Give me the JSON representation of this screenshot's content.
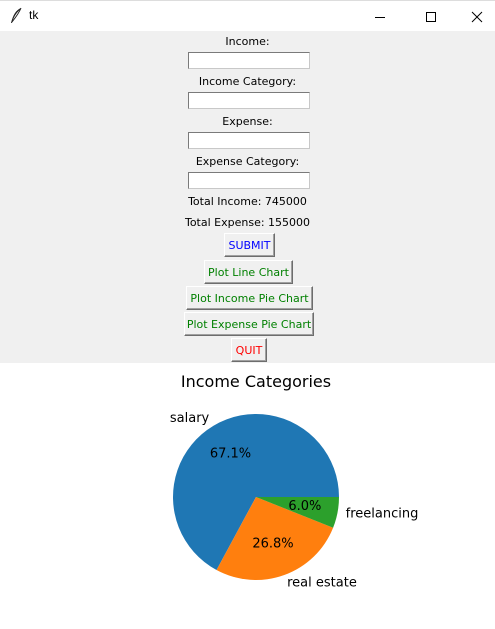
{
  "window": {
    "title": "tk"
  },
  "form": {
    "income_label": "Income:",
    "income_value": "",
    "income_category_label": "Income Category:",
    "income_category_value": "",
    "expense_label": "Expense:",
    "expense_value": "",
    "expense_category_label": "Expense Category:",
    "expense_category_value": "",
    "total_income": "Total Income: 745000",
    "total_expense": "Total Expense: 155000"
  },
  "buttons": {
    "submit": "SUBMIT",
    "plot_line": "Plot Line Chart",
    "plot_income_pie": "Plot Income Pie Chart",
    "plot_expense_pie": "Plot Expense Pie Chart",
    "quit": "QUIT"
  },
  "colors": {
    "submit_text": "#0000ff",
    "plot_text": "#008000",
    "quit_text": "#ff0000"
  },
  "icons": [
    "feather-icon",
    "minimize-icon",
    "maximize-icon",
    "close-icon"
  ],
  "chart_data": {
    "type": "pie",
    "title": "Income Categories",
    "categories": [
      "salary",
      "real estate",
      "freelancing"
    ],
    "values": [
      500000,
      200000,
      45000
    ],
    "percent_labels": [
      "67.1%",
      "26.8%",
      "6.0%"
    ],
    "colors": [
      "#1f77b4",
      "#ff7f0e",
      "#2ca02c"
    ],
    "start_angle_deg": 0,
    "direction": "counterclockwise"
  }
}
